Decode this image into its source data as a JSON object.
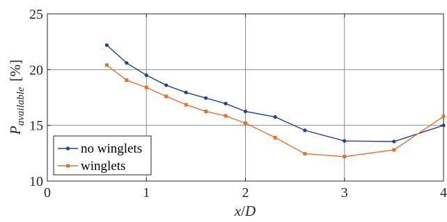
{
  "chart_data": {
    "type": "line",
    "xlabel_main": "x",
    "xlabel_slash": "/",
    "xlabel_D": "D",
    "ylabel_main": "P",
    "ylabel_sub": "available",
    "ylabel_unit": "[%]",
    "xlim": [
      0,
      4
    ],
    "ylim": [
      10,
      25
    ],
    "xticks": [
      0,
      1,
      2,
      3,
      4
    ],
    "yticks": [
      10,
      15,
      20,
      25
    ],
    "xtick_labels": [
      "0",
      "1",
      "2",
      "3",
      "4"
    ],
    "ytick_labels": [
      "10",
      "15",
      "20",
      "25"
    ],
    "grid": true,
    "legend_position": "bottom-left",
    "series": [
      {
        "name": "no winglets",
        "color": "#1f3f9f",
        "marker": "circle",
        "x": [
          0.6,
          0.8,
          1.0,
          1.2,
          1.4,
          1.6,
          1.8,
          2.0,
          2.3,
          2.6,
          3.0,
          3.5,
          4.0
        ],
        "y": [
          22.2,
          20.6,
          19.5,
          18.6,
          17.95,
          17.45,
          16.95,
          16.25,
          15.75,
          14.55,
          13.6,
          13.55,
          15.0
        ]
      },
      {
        "name": "winglets",
        "color": "#e8702a",
        "marker": "square",
        "x": [
          0.6,
          0.8,
          1.0,
          1.2,
          1.4,
          1.6,
          1.8,
          2.0,
          2.3,
          2.6,
          3.0,
          3.5,
          4.0
        ],
        "y": [
          20.4,
          19.05,
          18.4,
          17.6,
          16.85,
          16.25,
          15.85,
          15.2,
          13.9,
          12.45,
          12.2,
          12.8,
          15.8
        ]
      }
    ]
  }
}
